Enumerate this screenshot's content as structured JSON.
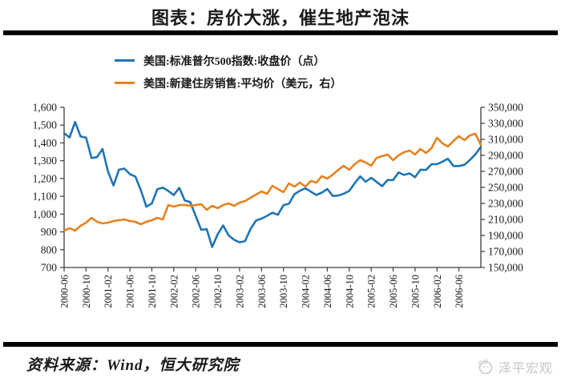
{
  "title": "图表：房价大涨，催生地产泡沫",
  "chart_data": {
    "type": "line",
    "title": "图表：房价大涨，催生地产泡沫",
    "x_start": "2000-06",
    "x_end": "2006-10",
    "x_frequency": "monthly",
    "x_tick_every": 4,
    "x_tick_labels": [
      "2000-06",
      "2000-10",
      "2001-02",
      "2001-06",
      "2001-10",
      "2002-02",
      "2002-06",
      "2002-10",
      "2003-02",
      "2003-06",
      "2003-10",
      "2004-02",
      "2004-06",
      "2004-10",
      "2005-02",
      "2005-06",
      "2005-10",
      "2006-02",
      "2006-06"
    ],
    "grid": false,
    "legend_position": "top",
    "left_axis": {
      "min": 700,
      "max": 1600,
      "step": 100,
      "tick_labels": [
        "700",
        "800",
        "900",
        "1,000",
        "1,100",
        "1,200",
        "1,300",
        "1,400",
        "1,500",
        "1,600"
      ]
    },
    "right_axis": {
      "min": 150000,
      "max": 350000,
      "step": 20000,
      "tick_labels": [
        "150,000",
        "170,000",
        "190,000",
        "210,000",
        "230,000",
        "250,000",
        "270,000",
        "290,000",
        "310,000",
        "330,000",
        "350,000"
      ]
    },
    "series": [
      {
        "name": "美国:标准普尔500指数:收盘价（点）",
        "axis": "left",
        "color": "#1F74B4",
        "values": [
          1454.6,
          1430.8,
          1517.7,
          1436.5,
          1429.4,
          1315.0,
          1320.3,
          1366.0,
          1239.9,
          1160.3,
          1249.5,
          1255.8,
          1224.4,
          1211.2,
          1133.6,
          1040.9,
          1059.8,
          1139.5,
          1148.1,
          1130.2,
          1106.7,
          1147.4,
          1076.9,
          1067.1,
          989.8,
          911.6,
          916.1,
          815.3,
          885.8,
          936.3,
          879.8,
          855.7,
          841.2,
          848.2,
          916.9,
          963.6,
          974.5,
          990.3,
          1008.0,
          996.0,
          1050.7,
          1058.2,
          1111.9,
          1131.1,
          1144.9,
          1126.2,
          1107.3,
          1120.7,
          1140.8,
          1101.7,
          1104.2,
          1114.6,
          1130.2,
          1173.8,
          1211.9,
          1181.3,
          1203.6,
          1180.6,
          1156.9,
          1191.5,
          1191.3,
          1234.2,
          1220.3,
          1228.8,
          1207.0,
          1249.5,
          1248.3,
          1280.1,
          1280.7,
          1294.8,
          1310.6,
          1270.1,
          1270.2,
          1276.7,
          1303.8,
          1335.9,
          1377.9
        ]
      },
      {
        "name": "美国:新建住房销售:平均价（美元，右）",
        "axis": "right",
        "color": "#E8811F",
        "values": [
          196000,
          199000,
          196000,
          202000,
          206000,
          212000,
          207000,
          205000,
          206000,
          208000,
          209000,
          210000,
          208000,
          207000,
          204000,
          207000,
          209000,
          212000,
          210000,
          228000,
          226000,
          228000,
          228000,
          227000,
          228000,
          229000,
          222000,
          227000,
          224000,
          228000,
          230000,
          227000,
          231000,
          233000,
          237000,
          241000,
          245000,
          242000,
          252000,
          248000,
          244000,
          255000,
          251000,
          256000,
          251000,
          258000,
          256000,
          264000,
          261000,
          266000,
          272000,
          277000,
          272000,
          279000,
          284000,
          281000,
          277000,
          287000,
          289000,
          291000,
          284000,
          290000,
          294000,
          296000,
          291000,
          298000,
          293000,
          299000,
          312000,
          305000,
          301000,
          308000,
          314000,
          309000,
          315000,
          317000,
          303000
        ]
      }
    ]
  },
  "footer": {
    "source_label": "资料来源：Wind，恒大研究院",
    "brand_label": "泽平宏观"
  }
}
